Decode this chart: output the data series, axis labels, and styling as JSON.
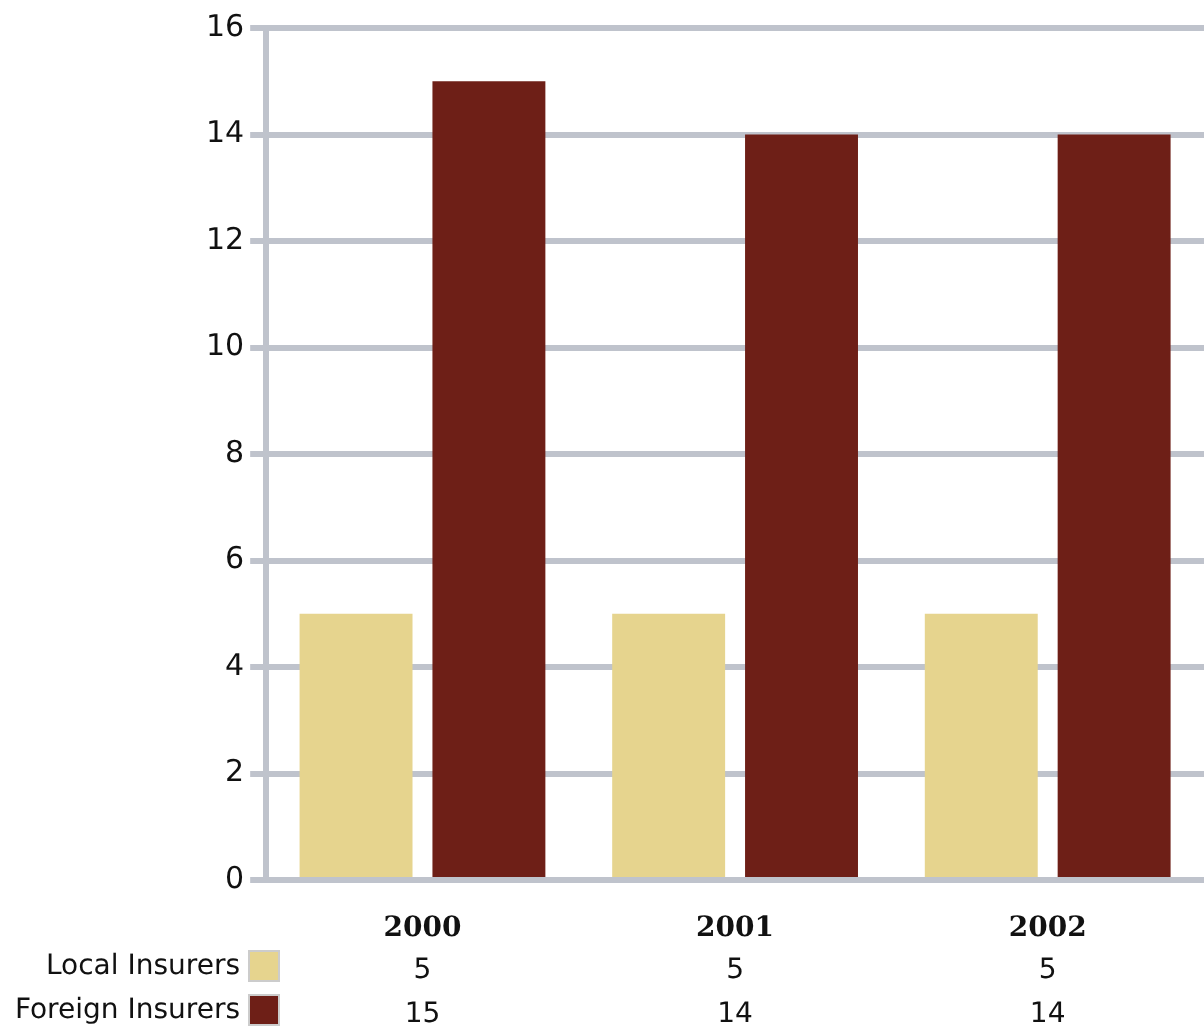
{
  "chart_data": {
    "type": "bar",
    "categories": [
      "2000",
      "2001",
      "2002"
    ],
    "series": [
      {
        "name": "Local Insurers",
        "color": "#e6d48e",
        "values": [
          5,
          5,
          5
        ]
      },
      {
        "name": "Foreign Insurers",
        "color": "#6e1f17",
        "values": [
          15,
          14,
          14
        ]
      }
    ],
    "ylim": [
      0,
      16
    ],
    "yticks": [
      0,
      2,
      4,
      6,
      8,
      10,
      12,
      14,
      16
    ],
    "grid": "y",
    "legend": "bottom left",
    "data_labels": true
  }
}
